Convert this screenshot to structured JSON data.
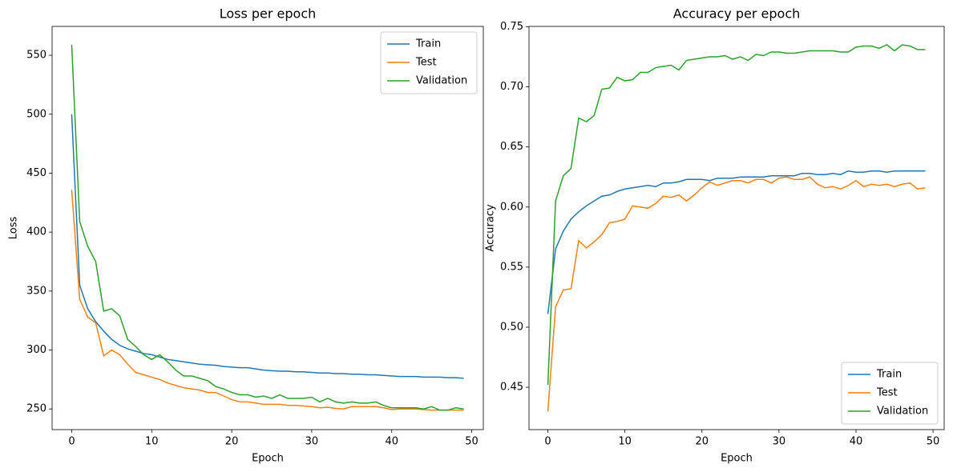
{
  "chart_data": [
    {
      "type": "line",
      "title": "Loss per epoch",
      "x_label": "Epoch",
      "y_label": "Loss",
      "x": [
        0,
        1,
        2,
        3,
        4,
        5,
        6,
        7,
        8,
        9,
        10,
        11,
        12,
        13,
        14,
        15,
        16,
        17,
        18,
        19,
        20,
        21,
        22,
        23,
        24,
        25,
        26,
        27,
        28,
        29,
        30,
        31,
        32,
        33,
        34,
        35,
        36,
        37,
        38,
        39,
        40,
        41,
        42,
        43,
        44,
        45,
        46,
        47,
        48,
        49
      ],
      "xlim": [
        -2.45,
        51.45
      ],
      "xticks": [
        0,
        10,
        20,
        30,
        40,
        50
      ],
      "ylim": [
        232.5,
        574.5
      ],
      "yticks": [
        250,
        300,
        350,
        400,
        450,
        500,
        550
      ],
      "legend": "upper right",
      "series": [
        {
          "name": "Train",
          "color": "#1f77b4",
          "values": [
            500,
            355,
            335,
            324,
            316,
            309,
            304,
            301,
            299,
            297,
            296,
            294,
            292,
            291,
            290,
            289,
            288,
            287.5,
            287,
            286,
            285.5,
            285,
            285,
            284,
            283,
            282.5,
            282,
            282,
            281.5,
            281.5,
            281,
            280.5,
            280.5,
            280,
            280,
            279.5,
            279.5,
            279,
            279,
            278.5,
            278,
            277.5,
            277.5,
            277.5,
            277,
            277,
            277,
            276.5,
            276.5,
            276
          ]
        },
        {
          "name": "Test",
          "color": "#ff7f0e",
          "values": [
            436,
            343,
            328,
            323,
            295,
            300,
            296,
            288,
            281,
            279,
            277,
            275,
            272,
            270,
            268,
            267,
            266,
            264,
            264,
            261,
            258,
            256,
            256,
            255,
            254,
            254,
            254,
            253,
            253,
            252.5,
            252,
            251,
            251.5,
            250.5,
            250,
            252,
            252,
            252,
            252,
            251,
            249.5,
            250,
            250,
            250,
            249.5,
            249,
            249,
            249,
            249,
            249
          ]
        },
        {
          "name": "Validation",
          "color": "#2ca02c",
          "values": [
            559,
            409,
            388,
            375,
            333,
            335,
            329,
            309,
            303,
            296,
            292,
            296,
            290,
            283,
            278,
            278,
            276,
            274,
            269,
            267,
            264,
            262,
            262,
            260,
            261,
            259,
            262,
            259,
            259,
            259,
            260,
            256,
            259,
            256,
            255,
            256,
            255,
            255,
            256,
            253,
            251,
            251,
            251,
            251,
            250,
            252,
            249,
            249,
            251,
            250
          ]
        }
      ]
    },
    {
      "type": "line",
      "title": "Accuracy per epoch",
      "x_label": "Epoch",
      "y_label": "Accuracy",
      "x": [
        0,
        1,
        2,
        3,
        4,
        5,
        6,
        7,
        8,
        9,
        10,
        11,
        12,
        13,
        14,
        15,
        16,
        17,
        18,
        19,
        20,
        21,
        22,
        23,
        24,
        25,
        26,
        27,
        28,
        29,
        30,
        31,
        32,
        33,
        34,
        35,
        36,
        37,
        38,
        39,
        40,
        41,
        42,
        43,
        44,
        45,
        46,
        47,
        48,
        49
      ],
      "xlim": [
        -2.45,
        51.45
      ],
      "xticks": [
        0,
        10,
        20,
        30,
        40,
        50
      ],
      "ylim": [
        0.4148,
        0.7503
      ],
      "yticks": [
        0.45,
        {
          "value": 0.5,
          "label": "0.50"
        },
        0.55,
        {
          "value": 0.6,
          "label": "0.60"
        },
        0.65,
        {
          "value": 0.7,
          "label": "0.70"
        },
        0.75
      ],
      "legend": "lower right",
      "series": [
        {
          "name": "Train",
          "color": "#1f77b4",
          "values": [
            0.511,
            0.565,
            0.58,
            0.59,
            0.596,
            0.601,
            0.605,
            0.609,
            0.61,
            0.613,
            0.615,
            0.616,
            0.617,
            0.618,
            0.617,
            0.62,
            0.62,
            0.621,
            0.623,
            0.623,
            0.623,
            0.622,
            0.624,
            0.624,
            0.624,
            0.625,
            0.625,
            0.625,
            0.625,
            0.626,
            0.626,
            0.626,
            0.626,
            0.628,
            0.628,
            0.627,
            0.627,
            0.628,
            0.627,
            0.63,
            0.629,
            0.629,
            0.63,
            0.63,
            0.629,
            0.63,
            0.63,
            0.63,
            0.63,
            0.63
          ]
        },
        {
          "name": "Test",
          "color": "#ff7f0e",
          "values": [
            0.43,
            0.517,
            0.531,
            0.532,
            0.572,
            0.566,
            0.571,
            0.577,
            0.587,
            0.588,
            0.59,
            0.601,
            0.6,
            0.599,
            0.603,
            0.609,
            0.608,
            0.61,
            0.605,
            0.61,
            0.616,
            0.621,
            0.618,
            0.62,
            0.622,
            0.622,
            0.62,
            0.623,
            0.623,
            0.62,
            0.624,
            0.625,
            0.623,
            0.623,
            0.625,
            0.619,
            0.616,
            0.617,
            0.615,
            0.618,
            0.622,
            0.617,
            0.619,
            0.618,
            0.619,
            0.617,
            0.619,
            0.62,
            0.615,
            0.616
          ]
        },
        {
          "name": "Validation",
          "color": "#2ca02c",
          "values": [
            0.452,
            0.605,
            0.626,
            0.632,
            0.674,
            0.671,
            0.676,
            0.698,
            0.699,
            0.708,
            0.705,
            0.706,
            0.712,
            0.712,
            0.716,
            0.717,
            0.718,
            0.714,
            0.722,
            0.723,
            0.724,
            0.725,
            0.725,
            0.726,
            0.723,
            0.725,
            0.722,
            0.727,
            0.726,
            0.729,
            0.729,
            0.728,
            0.728,
            0.729,
            0.73,
            0.73,
            0.73,
            0.73,
            0.729,
            0.729,
            0.733,
            0.734,
            0.734,
            0.732,
            0.735,
            0.73,
            0.735,
            0.734,
            0.731,
            0.731
          ]
        }
      ]
    }
  ]
}
